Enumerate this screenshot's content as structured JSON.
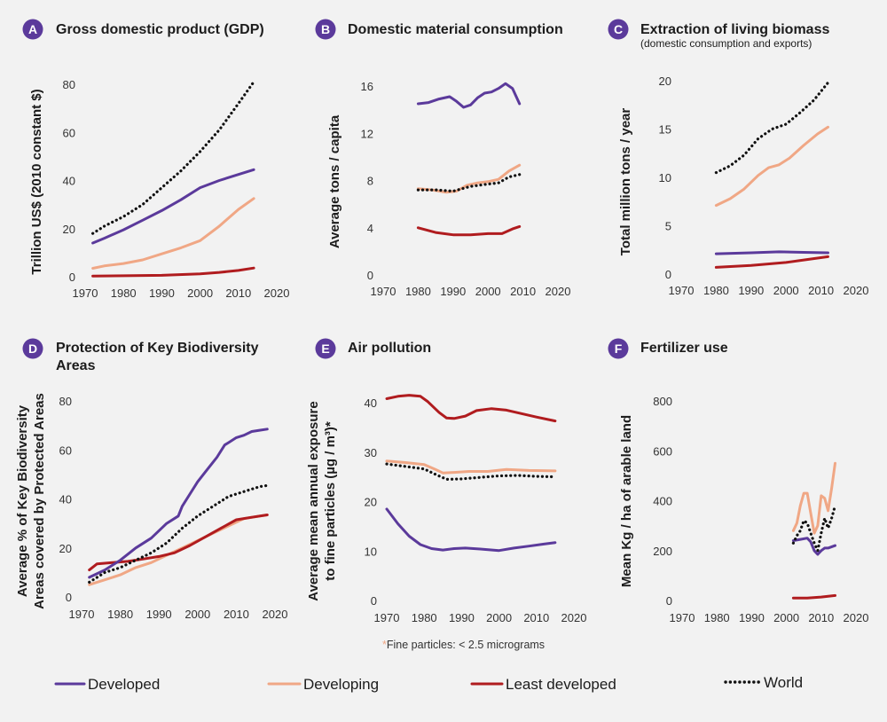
{
  "colors": {
    "developed": "#5b3a9b",
    "developing": "#f0a785",
    "least_developed": "#b01c1f",
    "world": "#111111",
    "badge": "#5b3a9b",
    "background": "#f2f2f2"
  },
  "legend": {
    "developed": "Developed",
    "developing": "Developing",
    "least_developed": "Least developed",
    "world": "World"
  },
  "footnote": {
    "star": "*",
    "text": "Fine particles: < 2.5 micrograms"
  },
  "chart_data": [
    {
      "id": "A",
      "type": "line",
      "title": "Gross domestic product (GDP)",
      "subtitle": "",
      "ylabel": "Trillion US$ (2010 constant $)",
      "xlim": [
        1970,
        2020
      ],
      "ylim": [
        0,
        85
      ],
      "xticks": [
        1970,
        1980,
        1990,
        2000,
        2010,
        2020
      ],
      "yticks": [
        0,
        20,
        40,
        60,
        80
      ],
      "series": [
        {
          "key": "developed",
          "style": "solid",
          "x": [
            1972,
            1975,
            1980,
            1985,
            1990,
            1995,
            2000,
            2005,
            2010,
            2014
          ],
          "y": [
            14,
            16,
            19.5,
            23.5,
            27.5,
            32,
            37,
            40,
            42.5,
            44.5
          ]
        },
        {
          "key": "developing",
          "style": "solid",
          "x": [
            1972,
            1975,
            1980,
            1985,
            1990,
            1995,
            2000,
            2005,
            2010,
            2014
          ],
          "y": [
            3.5,
            4.5,
            5.5,
            7,
            9.5,
            12,
            15,
            21,
            28,
            32.5
          ]
        },
        {
          "key": "least_developed",
          "style": "solid",
          "x": [
            1972,
            1980,
            1990,
            2000,
            2005,
            2010,
            2014
          ],
          "y": [
            0.3,
            0.4,
            0.6,
            1.2,
            1.8,
            2.6,
            3.6
          ]
        },
        {
          "key": "world",
          "style": "dotted",
          "x": [
            1972,
            1975,
            1980,
            1985,
            1990,
            1995,
            2000,
            2005,
            2010,
            2014
          ],
          "y": [
            18,
            21,
            25,
            30,
            37,
            44,
            52,
            61,
            72,
            81
          ]
        }
      ]
    },
    {
      "id": "B",
      "type": "line",
      "title": "Domestic material consumption",
      "subtitle": "",
      "ylabel": "Average tons / capita",
      "xlim": [
        1970,
        2020
      ],
      "ylim": [
        0,
        17
      ],
      "xticks": [
        1970,
        1980,
        1990,
        2000,
        2010,
        2020
      ],
      "yticks": [
        0,
        4,
        8,
        12,
        16
      ],
      "series": [
        {
          "key": "developed",
          "style": "solid",
          "x": [
            1980,
            1983,
            1986,
            1989,
            1991,
            1993,
            1995,
            1997,
            1999,
            2001,
            2003,
            2005,
            2007,
            2009
          ],
          "y": [
            14.5,
            14.6,
            14.9,
            15.1,
            14.7,
            14.2,
            14.4,
            15,
            15.4,
            15.5,
            15.8,
            16.2,
            15.8,
            14.5
          ]
        },
        {
          "key": "developing",
          "style": "solid",
          "x": [
            1980,
            1984,
            1988,
            1991,
            1994,
            1997,
            2000,
            2003,
            2006,
            2009
          ],
          "y": [
            7.3,
            7.2,
            7,
            7.1,
            7.6,
            7.8,
            7.9,
            8.1,
            8.8,
            9.3
          ]
        },
        {
          "key": "least_developed",
          "style": "solid",
          "x": [
            1980,
            1985,
            1990,
            1995,
            2000,
            2004,
            2007,
            2009
          ],
          "y": [
            4,
            3.6,
            3.4,
            3.4,
            3.5,
            3.5,
            3.9,
            4.1
          ]
        },
        {
          "key": "world",
          "style": "dotted",
          "x": [
            1980,
            1985,
            1990,
            1995,
            2000,
            2003,
            2006,
            2009
          ],
          "y": [
            7.2,
            7.2,
            7.1,
            7.5,
            7.7,
            7.8,
            8.3,
            8.5
          ]
        }
      ]
    },
    {
      "id": "C",
      "type": "line",
      "title": "Extraction of living biomass",
      "subtitle": "(domestic consumption and exports)",
      "ylabel": "Total million tons / year",
      "xlim": [
        1970,
        2020
      ],
      "ylim": [
        0,
        21
      ],
      "xticks": [
        1970,
        1980,
        1990,
        2000,
        2010,
        2020
      ],
      "yticks": [
        0,
        5,
        10,
        15,
        20
      ],
      "series": [
        {
          "key": "developed",
          "style": "solid",
          "x": [
            1980,
            1990,
            1998,
            2005,
            2012
          ],
          "y": [
            2.1,
            2.2,
            2.3,
            2.25,
            2.2
          ]
        },
        {
          "key": "developing",
          "style": "solid",
          "x": [
            1980,
            1984,
            1988,
            1992,
            1995,
            1998,
            2001,
            2005,
            2009,
            2012
          ],
          "y": [
            7.1,
            7.8,
            8.8,
            10.2,
            11,
            11.3,
            12,
            13.3,
            14.5,
            15.2
          ]
        },
        {
          "key": "least_developed",
          "style": "solid",
          "x": [
            1980,
            1990,
            2000,
            2006,
            2012
          ],
          "y": [
            0.7,
            0.9,
            1.2,
            1.5,
            1.8
          ]
        },
        {
          "key": "world",
          "style": "dotted",
          "x": [
            1980,
            1984,
            1988,
            1992,
            1996,
            2000,
            2004,
            2008,
            2012
          ],
          "y": [
            10.5,
            11.2,
            12.3,
            14,
            15,
            15.5,
            16.7,
            18,
            19.8
          ]
        }
      ]
    },
    {
      "id": "D",
      "type": "line",
      "title": "Protection of Key Biodiversity Areas",
      "subtitle": "",
      "ylabel": "Average % of Key Biodiversity Areas covered by Protected Areas",
      "xlim": [
        1970,
        2020
      ],
      "ylim": [
        0,
        82
      ],
      "xticks": [
        1970,
        1980,
        1990,
        2000,
        2010,
        2020
      ],
      "yticks": [
        0,
        20,
        40,
        60,
        80
      ],
      "series": [
        {
          "key": "developed",
          "style": "solid",
          "x": [
            1972,
            1976,
            1980,
            1984,
            1988,
            1992,
            1995,
            1996,
            1998,
            2000,
            2002,
            2004,
            2005,
            2007,
            2008,
            2010,
            2012,
            2014,
            2016,
            2018
          ],
          "y": [
            8,
            11,
            15,
            20,
            24,
            30,
            33,
            37,
            42,
            47,
            51,
            55,
            57,
            62,
            63,
            65,
            66,
            67.5,
            68,
            68.5
          ]
        },
        {
          "key": "developing",
          "style": "solid",
          "x": [
            1972,
            1976,
            1980,
            1984,
            1988,
            1992,
            1996,
            2000,
            2004,
            2008,
            2012,
            2018
          ],
          "y": [
            5,
            7,
            9,
            12,
            14,
            17,
            20,
            23,
            26,
            29,
            32,
            33.5
          ]
        },
        {
          "key": "least_developed",
          "style": "solid",
          "x": [
            1972,
            1974,
            1978,
            1982,
            1986,
            1990,
            1994,
            1998,
            2002,
            2006,
            2010,
            2014,
            2018
          ],
          "y": [
            11,
            13.5,
            14,
            14.5,
            15.5,
            16.5,
            18,
            21,
            24.5,
            28,
            31.5,
            32.5,
            33.5
          ]
        },
        {
          "key": "world",
          "style": "dotted",
          "x": [
            1972,
            1976,
            1980,
            1984,
            1988,
            1992,
            1996,
            2000,
            2004,
            2008,
            2012,
            2016,
            2018
          ],
          "y": [
            6,
            10,
            12,
            15,
            18,
            22,
            28,
            33,
            37,
            41,
            43,
            45,
            45.5
          ]
        }
      ]
    },
    {
      "id": "E",
      "type": "line",
      "title": "Air pollution",
      "subtitle": "",
      "ylabel": "Average mean annual exposure to fine particles (µg / m³)*",
      "xlim": [
        1970,
        2020
      ],
      "ylim": [
        0,
        45
      ],
      "xticks": [
        1970,
        1980,
        1990,
        2000,
        2010,
        2020
      ],
      "yticks": [
        0,
        10,
        20,
        30,
        40
      ],
      "series": [
        {
          "key": "developed",
          "style": "solid",
          "x": [
            1970,
            1973,
            1976,
            1979,
            1982,
            1985,
            1988,
            1991,
            1995,
            2000,
            2004,
            2008,
            2012,
            2015
          ],
          "y": [
            18.5,
            15.5,
            13,
            11.3,
            10.5,
            10.2,
            10.5,
            10.6,
            10.4,
            10.1,
            10.6,
            11,
            11.4,
            11.7
          ]
        },
        {
          "key": "developing",
          "style": "solid",
          "x": [
            1970,
            1975,
            1980,
            1983,
            1985,
            1988,
            1992,
            1997,
            2002,
            2008,
            2015
          ],
          "y": [
            28.2,
            27.9,
            27.5,
            26.5,
            25.8,
            25.9,
            26.1,
            26.1,
            26.5,
            26.3,
            26.2
          ]
        },
        {
          "key": "least_developed",
          "style": "solid",
          "x": [
            1970,
            1973,
            1976,
            1979,
            1981,
            1984,
            1986,
            1988,
            1991,
            1994,
            1998,
            2002,
            2006,
            2010,
            2015
          ],
          "y": [
            40.8,
            41.3,
            41.5,
            41.3,
            40.2,
            38,
            36.9,
            36.8,
            37.3,
            38.4,
            38.8,
            38.5,
            37.8,
            37.1,
            36.3
          ]
        },
        {
          "key": "world",
          "style": "dotted",
          "x": [
            1970,
            1975,
            1980,
            1983,
            1986,
            1990,
            1995,
            2000,
            2005,
            2010,
            2015
          ],
          "y": [
            27.6,
            27.1,
            26.6,
            25.5,
            24.5,
            24.6,
            24.9,
            25.2,
            25.3,
            25.1,
            25
          ]
        }
      ]
    },
    {
      "id": "F",
      "type": "line",
      "title": "Fertilizer use",
      "subtitle": "",
      "ylabel": "Mean Kg / ha of arable land",
      "xlim": [
        1970,
        2020
      ],
      "ylim": [
        0,
        850
      ],
      "xticks": [
        1970,
        1980,
        1990,
        2000,
        2010,
        2020
      ],
      "yticks": [
        0,
        200,
        400,
        600,
        800
      ],
      "series": [
        {
          "key": "developed",
          "style": "solid",
          "x": [
            2002,
            2004,
            2006,
            2007,
            2008,
            2009,
            2010,
            2011,
            2012,
            2014
          ],
          "y": [
            240,
            245,
            250,
            235,
            200,
            185,
            200,
            210,
            210,
            220
          ]
        },
        {
          "key": "developing",
          "style": "solid",
          "x": [
            2002,
            2003,
            2004,
            2005,
            2006,
            2007,
            2008,
            2009,
            2010,
            2011,
            2012,
            2013,
            2014
          ],
          "y": [
            280,
            310,
            380,
            430,
            430,
            350,
            270,
            300,
            420,
            410,
            360,
            450,
            550
          ]
        },
        {
          "key": "least_developed",
          "style": "solid",
          "x": [
            2002,
            2006,
            2010,
            2014
          ],
          "y": [
            10,
            10,
            14,
            20
          ]
        },
        {
          "key": "world",
          "style": "dotted",
          "x": [
            2002,
            2003,
            2004,
            2005,
            2006,
            2007,
            2008,
            2009,
            2010,
            2011,
            2012,
            2013,
            2014
          ],
          "y": [
            230,
            260,
            280,
            320,
            310,
            270,
            230,
            200,
            270,
            330,
            290,
            330,
            380
          ]
        }
      ]
    }
  ]
}
